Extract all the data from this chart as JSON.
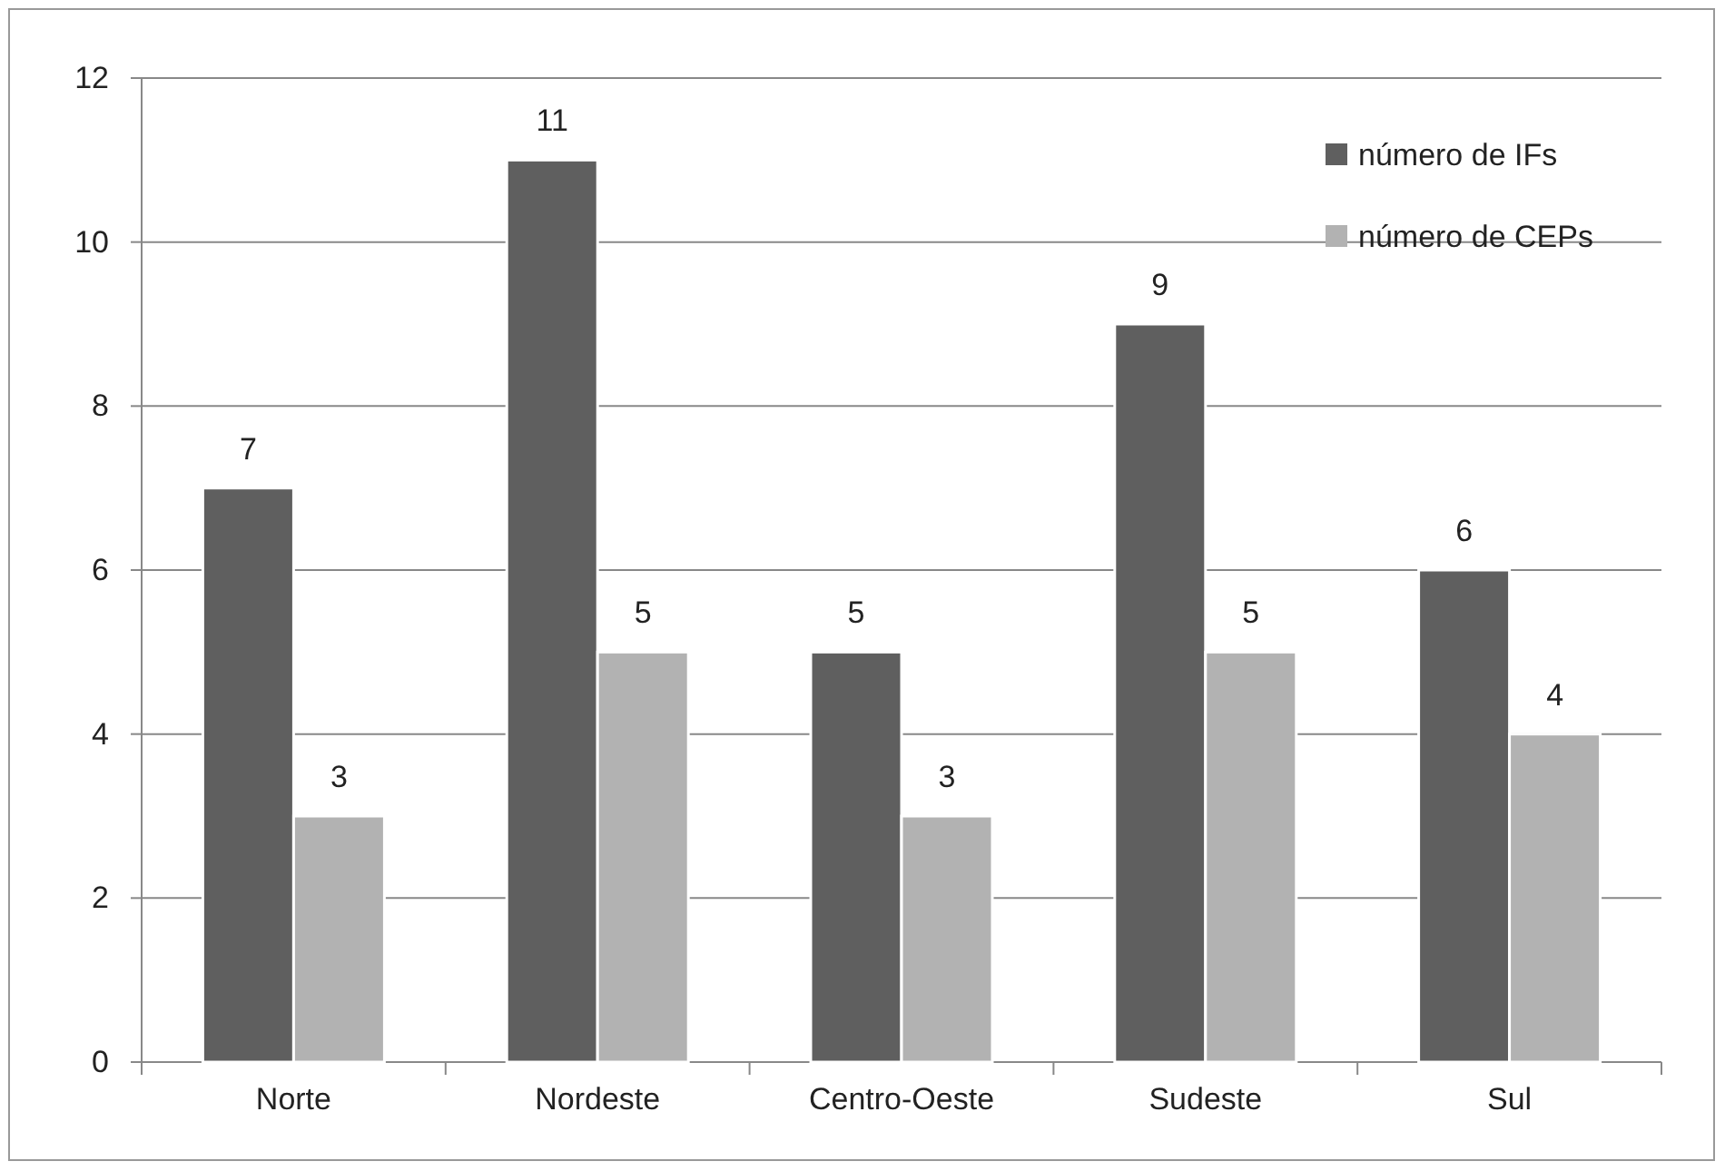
{
  "chart_data": {
    "type": "bar",
    "categories": [
      "Norte",
      "Nordeste",
      "Centro-Oeste",
      "Sudeste",
      "Sul"
    ],
    "series": [
      {
        "name": "número de IFs",
        "color": "#5f5f5f",
        "values": [
          7,
          11,
          5,
          9,
          6
        ]
      },
      {
        "name": "número de CEPs",
        "color": "#b2b2b2",
        "values": [
          3,
          5,
          3,
          5,
          4
        ]
      }
    ],
    "ylim": [
      0,
      12
    ],
    "yticks": [
      0,
      2,
      4,
      6,
      8,
      10,
      12
    ],
    "grid": "y",
    "legend": "top right",
    "data_labels": true
  }
}
